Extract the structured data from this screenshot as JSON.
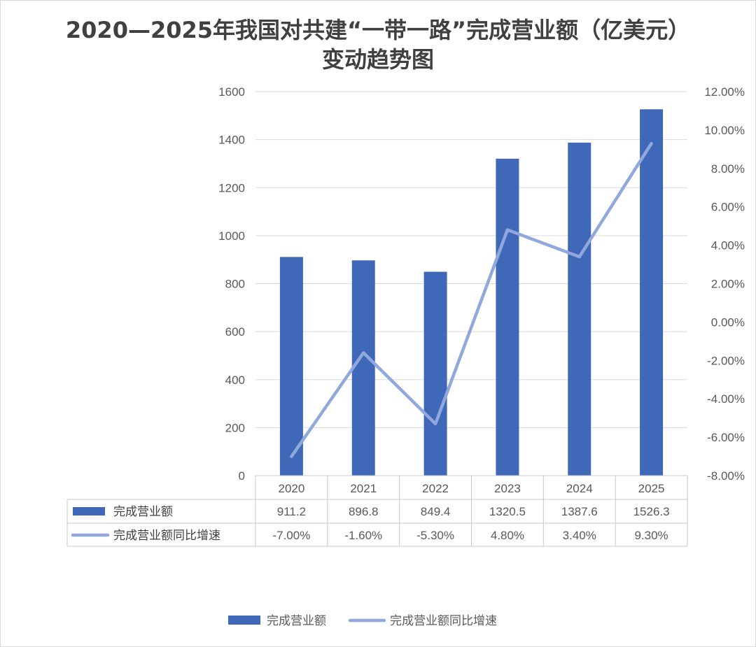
{
  "chart_data": {
    "type": "bar",
    "title": "2020—2025年我国对共建“一带一路”完成营业额（亿美元）变动趋势图",
    "categories": [
      "2020",
      "2021",
      "2022",
      "2023",
      "2024",
      "2025"
    ],
    "series": [
      {
        "name": "完成营业额",
        "type": "bar",
        "axis": "left",
        "color": "#4068b8",
        "values": [
          911.2,
          896.8,
          849.4,
          1320.5,
          1387.6,
          1526.3
        ]
      },
      {
        "name": "完成营业额同比增速",
        "type": "line",
        "axis": "right",
        "color": "#91a8dc",
        "values": [
          -0.07,
          -0.016,
          -0.053,
          0.048,
          0.034,
          0.093
        ]
      }
    ],
    "y_left": {
      "ylim": [
        0,
        1600
      ],
      "ticks": [
        "0",
        "200",
        "400",
        "600",
        "800",
        "1000",
        "1200",
        "1400",
        "1600"
      ]
    },
    "y_right": {
      "ylim": [
        -0.08,
        0.12
      ],
      "ticks": [
        "-8.00%",
        "-6.00%",
        "-4.00%",
        "-2.00%",
        "0.00%",
        "2.00%",
        "4.00%",
        "6.00%",
        "8.00%",
        "10.00%",
        "12.00%"
      ]
    },
    "data_table": {
      "rows": [
        {
          "label": "完成营业额",
          "cells": [
            "911.2",
            "896.8",
            "849.4",
            "1320.5",
            "1387.6",
            "1526.3"
          ]
        },
        {
          "label": "完成营业额同比增速",
          "cells": [
            "-7.00%",
            "-1.60%",
            "-5.30%",
            "4.80%",
            "3.40%",
            "9.30%"
          ]
        }
      ]
    },
    "grid": true,
    "legend": "bottom"
  }
}
